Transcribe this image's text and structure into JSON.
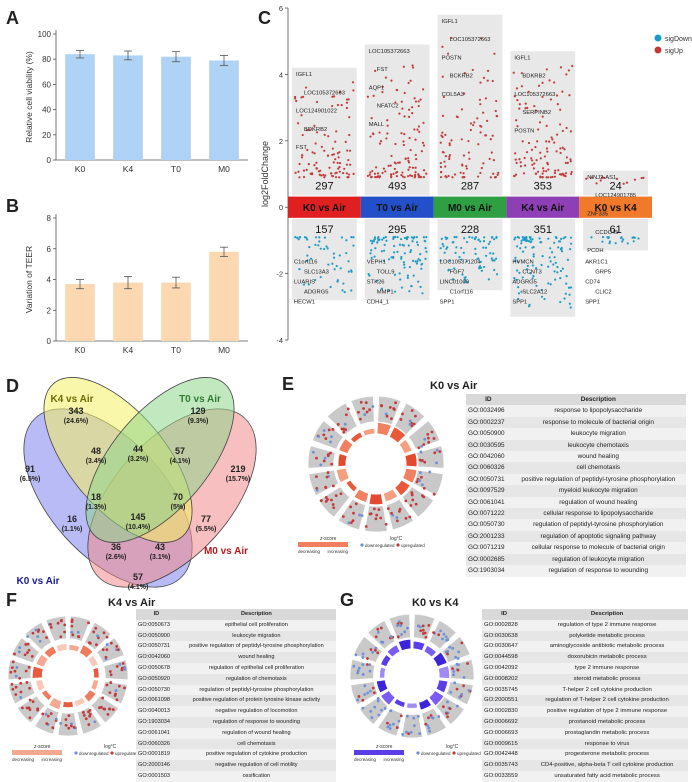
{
  "panels": {
    "A": {
      "letter": "A",
      "ylabel": "Relative cell viability  (%)"
    },
    "B": {
      "letter": "B",
      "ylabel": "Variation of TEER"
    },
    "C": {
      "letter": "C",
      "ylabel": "log2FoldChange"
    },
    "D": {
      "letter": "D"
    },
    "E": {
      "letter": "E",
      "title": "K0 vs Air"
    },
    "F": {
      "letter": "F",
      "title": "K4 vs Air"
    },
    "G": {
      "letter": "G",
      "title": "K0 vs K4"
    }
  },
  "chart_data": [
    {
      "panel": "A",
      "type": "bar",
      "categories": [
        "K0",
        "K4",
        "T0",
        "M0"
      ],
      "values": [
        84,
        83,
        82,
        79
      ],
      "errors": [
        3,
        3.5,
        4,
        4
      ],
      "ylabel": "Relative cell viability  (%)",
      "ylim": [
        0,
        100
      ],
      "yticks": [
        "0",
        "20",
        "40",
        "60",
        "80",
        "100"
      ],
      "bar_color": "#aed3f5"
    },
    {
      "panel": "B",
      "type": "bar",
      "categories": [
        "K0",
        "K4",
        "T0",
        "M0"
      ],
      "values": [
        3.7,
        3.8,
        3.8,
        5.8
      ],
      "errors": [
        0.3,
        0.4,
        0.35,
        0.3
      ],
      "ylabel": "Variation of TEER",
      "ylim": [
        0,
        8
      ],
      "yticks": [
        "0",
        "2",
        "4",
        "6",
        "8"
      ],
      "bar_color": "#fbd8b0"
    },
    {
      "panel": "C",
      "type": "scatter",
      "ylabel": "log2FoldChange",
      "ylim": [
        -4,
        6
      ],
      "yticks": [
        "-4",
        "-2",
        "0",
        "2",
        "4",
        "6"
      ],
      "legend": [
        "sigDown",
        "sigUp"
      ],
      "legend_colors": [
        "#1d9bc6",
        "#c43a3a"
      ],
      "comparisons": [
        {
          "label": "K0 vs Air",
          "color": "#e02020",
          "up": "297",
          "down": "157",
          "up_genes": [
            "IGFL1",
            "LOC105372663",
            "LOC124901022",
            "BDKRB2",
            "FST"
          ],
          "down_genes": [
            "C1orf116",
            "SLC13A3",
            "LUARIS",
            "ADGRG5",
            "HECW1"
          ]
        },
        {
          "label": "T0 vs Air",
          "color": "#2350c8",
          "up": "493",
          "down": "295",
          "up_genes": [
            "LOC105372663",
            "FST",
            "AQP1",
            "NFATC2",
            "MALL"
          ],
          "down_genes": [
            "VEPH1",
            "TOLL9",
            "STK26",
            "MMP1",
            "CDH4_1"
          ]
        },
        {
          "label": "M0 vs Air",
          "color": "#2ea043",
          "up": "287",
          "down": "228",
          "up_genes": [
            "IGFL1",
            "LOC105372663",
            "POSTN",
            "BCKRB2",
            "COL5A3"
          ],
          "down_genes": [
            "LOC105371204",
            "FGF7",
            "LINC01000",
            "C1orf116",
            "SPP1"
          ]
        },
        {
          "label": "K4 vs Air",
          "color": "#8e3fb5",
          "up": "353",
          "down": "351",
          "up_genes": [
            "IGFL1",
            "BDKRB2",
            "LOC105372663",
            "SERPINB2",
            "POSTN"
          ],
          "down_genes": [
            "HVMCN",
            "CCNT3",
            "ADGRG5",
            "SLC2A12",
            "SPP1"
          ]
        },
        {
          "label": "K0 vs K4",
          "color": "#f07a2a",
          "up": "24",
          "down": "61",
          "up_genes": [
            "NINJ2-AS1",
            "LOC124901785",
            "ZNF335",
            "CCDC45",
            "PCDH"
          ],
          "down_genes": [
            "AKR1C1",
            "GRP5",
            "CD74",
            "CLIC2",
            "SPP1"
          ]
        }
      ]
    },
    {
      "panel": "D",
      "type": "venn",
      "sets": [
        {
          "name": "K4 vs Air",
          "color": "#f4f062"
        },
        {
          "name": "T0 vs Air",
          "color": "#8fd58a"
        },
        {
          "name": "K0 vs Air",
          "color": "#7f84f0"
        },
        {
          "name": "M0 vs Air",
          "color": "#f08a8a"
        }
      ],
      "regions": [
        {
          "count": "343",
          "pct": "(24.6%)"
        },
        {
          "count": "129",
          "pct": "(9.3%)"
        },
        {
          "count": "91",
          "pct": "(6.5%)"
        },
        {
          "count": "219",
          "pct": "(15.7%)"
        },
        {
          "count": "44",
          "pct": "(3.2%)"
        },
        {
          "count": "48",
          "pct": "(3.4%)"
        },
        {
          "count": "57",
          "pct": "(4.1%)"
        },
        {
          "count": "18",
          "pct": "(1.3%)"
        },
        {
          "count": "70",
          "pct": "(5%)"
        },
        {
          "count": "145",
          "pct": "(10.4%)"
        },
        {
          "count": "16",
          "pct": "(1.1%)"
        },
        {
          "count": "77",
          "pct": "(5.5%)"
        },
        {
          "count": "36",
          "pct": "(2.6%)"
        },
        {
          "count": "43",
          "pct": "(3.1%)"
        },
        {
          "count": "57",
          "pct": "(4.1%)"
        }
      ]
    }
  ],
  "go_tables": {
    "E": {
      "headers": [
        "ID",
        "Description"
      ],
      "rows": [
        [
          "GO:0032496",
          "response to lipopolysaccharide"
        ],
        [
          "GO:0002237",
          "response to molecule of bacterial origin"
        ],
        [
          "GO:0050900",
          "leukocyte migration"
        ],
        [
          "GO:0030595",
          "leukocyte chemotaxis"
        ],
        [
          "GO:0042060",
          "wound healing"
        ],
        [
          "GO:0060326",
          "cell chemotaxis"
        ],
        [
          "GO:0050731",
          "positive regulation of peptidyl-tyrosine phosphorylation"
        ],
        [
          "GO:0097529",
          "myeloid leukocyte migration"
        ],
        [
          "GO:0061041",
          "regulation of wound healing"
        ],
        [
          "GO:0071222",
          "cellular response to lipopolysaccharide"
        ],
        [
          "GO:0050730",
          "regulation of peptidyl-tyrosine phosphorylation"
        ],
        [
          "GO:2001233",
          "regulation of apoptotic signaling pathway"
        ],
        [
          "GO:0071219",
          "cellular response to molecule of bacterial origin"
        ],
        [
          "GO:0002685",
          "regulation of leukocyte migration"
        ],
        [
          "GO:1903034",
          "regulation of response to wounding"
        ]
      ]
    },
    "F": {
      "headers": [
        "ID",
        "Description"
      ],
      "rows": [
        [
          "GO:0050673",
          "epithelial cell proliferation"
        ],
        [
          "GO:0050900",
          "leukocyte migration"
        ],
        [
          "GO:0050731",
          "positive regulation of peptidyl-tyrosine phosphorylation"
        ],
        [
          "GO:0042060",
          "wound healing"
        ],
        [
          "GO:0050678",
          "regulation of epithelial cell proliferation"
        ],
        [
          "GO:0050920",
          "regulation of chemotaxis"
        ],
        [
          "GO:0050730",
          "regulation of peptidyl-tyrosine phosphorylation"
        ],
        [
          "GO:0061098",
          "positive regulation of protein tyrosine kinase activity"
        ],
        [
          "GO:0040013",
          "negative regulation of locomotion"
        ],
        [
          "GO:1903034",
          "regulation of response to wounding"
        ],
        [
          "GO:0061041",
          "regulation of wound healing"
        ],
        [
          "GO:0060326",
          "cell chemotaxis"
        ],
        [
          "GO:0001819",
          "positive regulation of cytokine production"
        ],
        [
          "GO:2000146",
          "negative regulation of cell motility"
        ],
        [
          "GO:0001503",
          "ossification"
        ]
      ]
    },
    "G": {
      "headers": [
        "ID",
        "Description"
      ],
      "rows": [
        [
          "GO:0002828",
          "regulation of type 2 immune response"
        ],
        [
          "GO:0030638",
          "polyketide metabolic process"
        ],
        [
          "GO:0030647",
          "aminoglycoside antibiotic metabolic process"
        ],
        [
          "GO:0044598",
          "doxorubicin metabolic process"
        ],
        [
          "GO:0042092",
          "type 2 immune response"
        ],
        [
          "GO:0008202",
          "steroid metabolic process"
        ],
        [
          "GO:0035745",
          "T-helper 2 cell cytokine production"
        ],
        [
          "GO:2000551",
          "regulation of T-helper 2 cell cytokine production"
        ],
        [
          "GO:0002830",
          "positive regulation of type 2 immune response"
        ],
        [
          "GO:0006692",
          "prostanoid metabolic process"
        ],
        [
          "GO:0006693",
          "prostaglandin metabolic process"
        ],
        [
          "GO:0009615",
          "response to virus"
        ],
        [
          "GO:0042448",
          "progesterone metabolic process"
        ],
        [
          "GO:0035743",
          "CD4-positive, alpha-beta T cell cytokine production"
        ],
        [
          "GO:0033559",
          "unsaturated fatty acid metabolic process"
        ]
      ]
    }
  },
  "circle_legends": {
    "E": {
      "zscore": "z-score",
      "logfc": "log°C",
      "low": "decreasing",
      "high": "increasing",
      "down": "downregulated",
      "up": "upregulated"
    },
    "F": {
      "zscore": "z-score",
      "logfc": "log°C",
      "low": "decreasing",
      "high": "increasing",
      "down": "downregulated",
      "up": "upregulated"
    },
    "G": {
      "zscore": "z-score",
      "logfc": "log°C",
      "low": "decreasing",
      "high": "increasing",
      "down": "downregulated",
      "up": "upregulated"
    }
  },
  "colors": {
    "up": "#c43a3a",
    "down": "#1d9bc6",
    "bar_a": "#aed3f5",
    "bar_b": "#fbd8b0"
  }
}
